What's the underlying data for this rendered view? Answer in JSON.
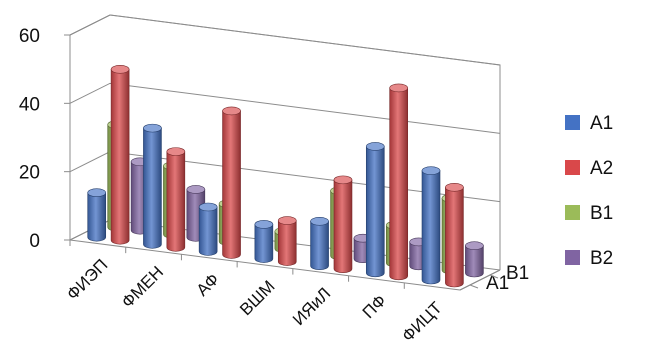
{
  "chart_data": {
    "type": "bar",
    "variant": "3d-cylinder",
    "title": "",
    "xlabel": "",
    "ylabel": "",
    "ylim": [
      0,
      60
    ],
    "yticks": [
      0,
      20,
      40,
      60
    ],
    "categories": [
      "ФИЭП",
      "ФМЕН",
      "АФ",
      "ВШМ",
      "ИЯиЛ",
      "ПФ",
      "ФИЦТ"
    ],
    "depth_labels": [
      "A1",
      "B1"
    ],
    "series": [
      {
        "name": "A1",
        "depth": 0,
        "color": "#4472C4",
        "values": [
          13,
          34,
          13,
          10,
          13,
          37,
          32
        ]
      },
      {
        "name": "A2",
        "depth": 0,
        "color": "#D9484A",
        "values": [
          50,
          28,
          42,
          12,
          26,
          55,
          28
        ]
      },
      {
        "name": "B1",
        "depth": 1,
        "color": "#9BBB59",
        "values": [
          30,
          20,
          11,
          5,
          19,
          11,
          21
        ]
      },
      {
        "name": "B2",
        "depth": 1,
        "color": "#8064A2",
        "values": [
          20,
          14,
          0,
          0,
          6,
          7,
          8
        ]
      }
    ],
    "legend_position": "right",
    "grid": true
  }
}
